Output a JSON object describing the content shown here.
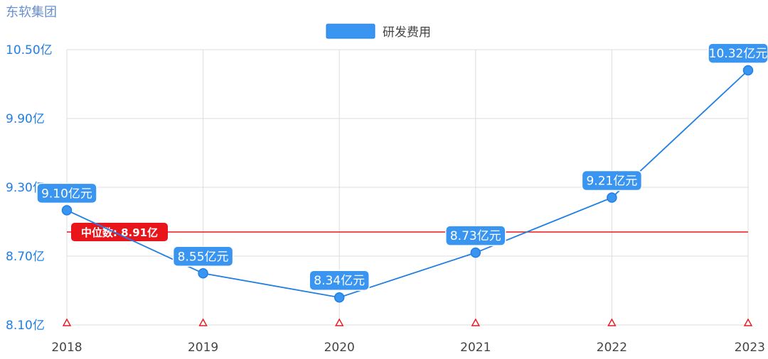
{
  "title": "东软集团",
  "colors": {
    "accent": "#3a95f0",
    "accent_dark": "#1f7fe5",
    "title": "#6a8fcf",
    "ytick": "#1f7fe5",
    "grid": "#dddddd",
    "median": "#e8161b"
  },
  "chart_data": {
    "type": "line",
    "categories": [
      "2018",
      "2019",
      "2020",
      "2021",
      "2022",
      "2023"
    ],
    "series": [
      {
        "name": "研发费用",
        "values": [
          9.1,
          8.55,
          8.34,
          8.73,
          9.21,
          10.32
        ]
      }
    ],
    "data_labels": [
      "9.10亿元",
      "8.55亿元",
      "8.34亿元",
      "8.73亿元",
      "9.21亿元",
      "10.32亿元"
    ],
    "yticks": [
      "10.50亿",
      "9.90亿",
      "9.30亿",
      "8.70亿",
      "8.10亿"
    ],
    "ytick_values": [
      10.5,
      9.9,
      9.3,
      8.7,
      8.1
    ],
    "ylim": [
      8.1,
      10.5
    ],
    "grid": true,
    "legend_position": "top-center",
    "median": {
      "value": 8.91,
      "label": "中位数: 8.91亿"
    }
  }
}
